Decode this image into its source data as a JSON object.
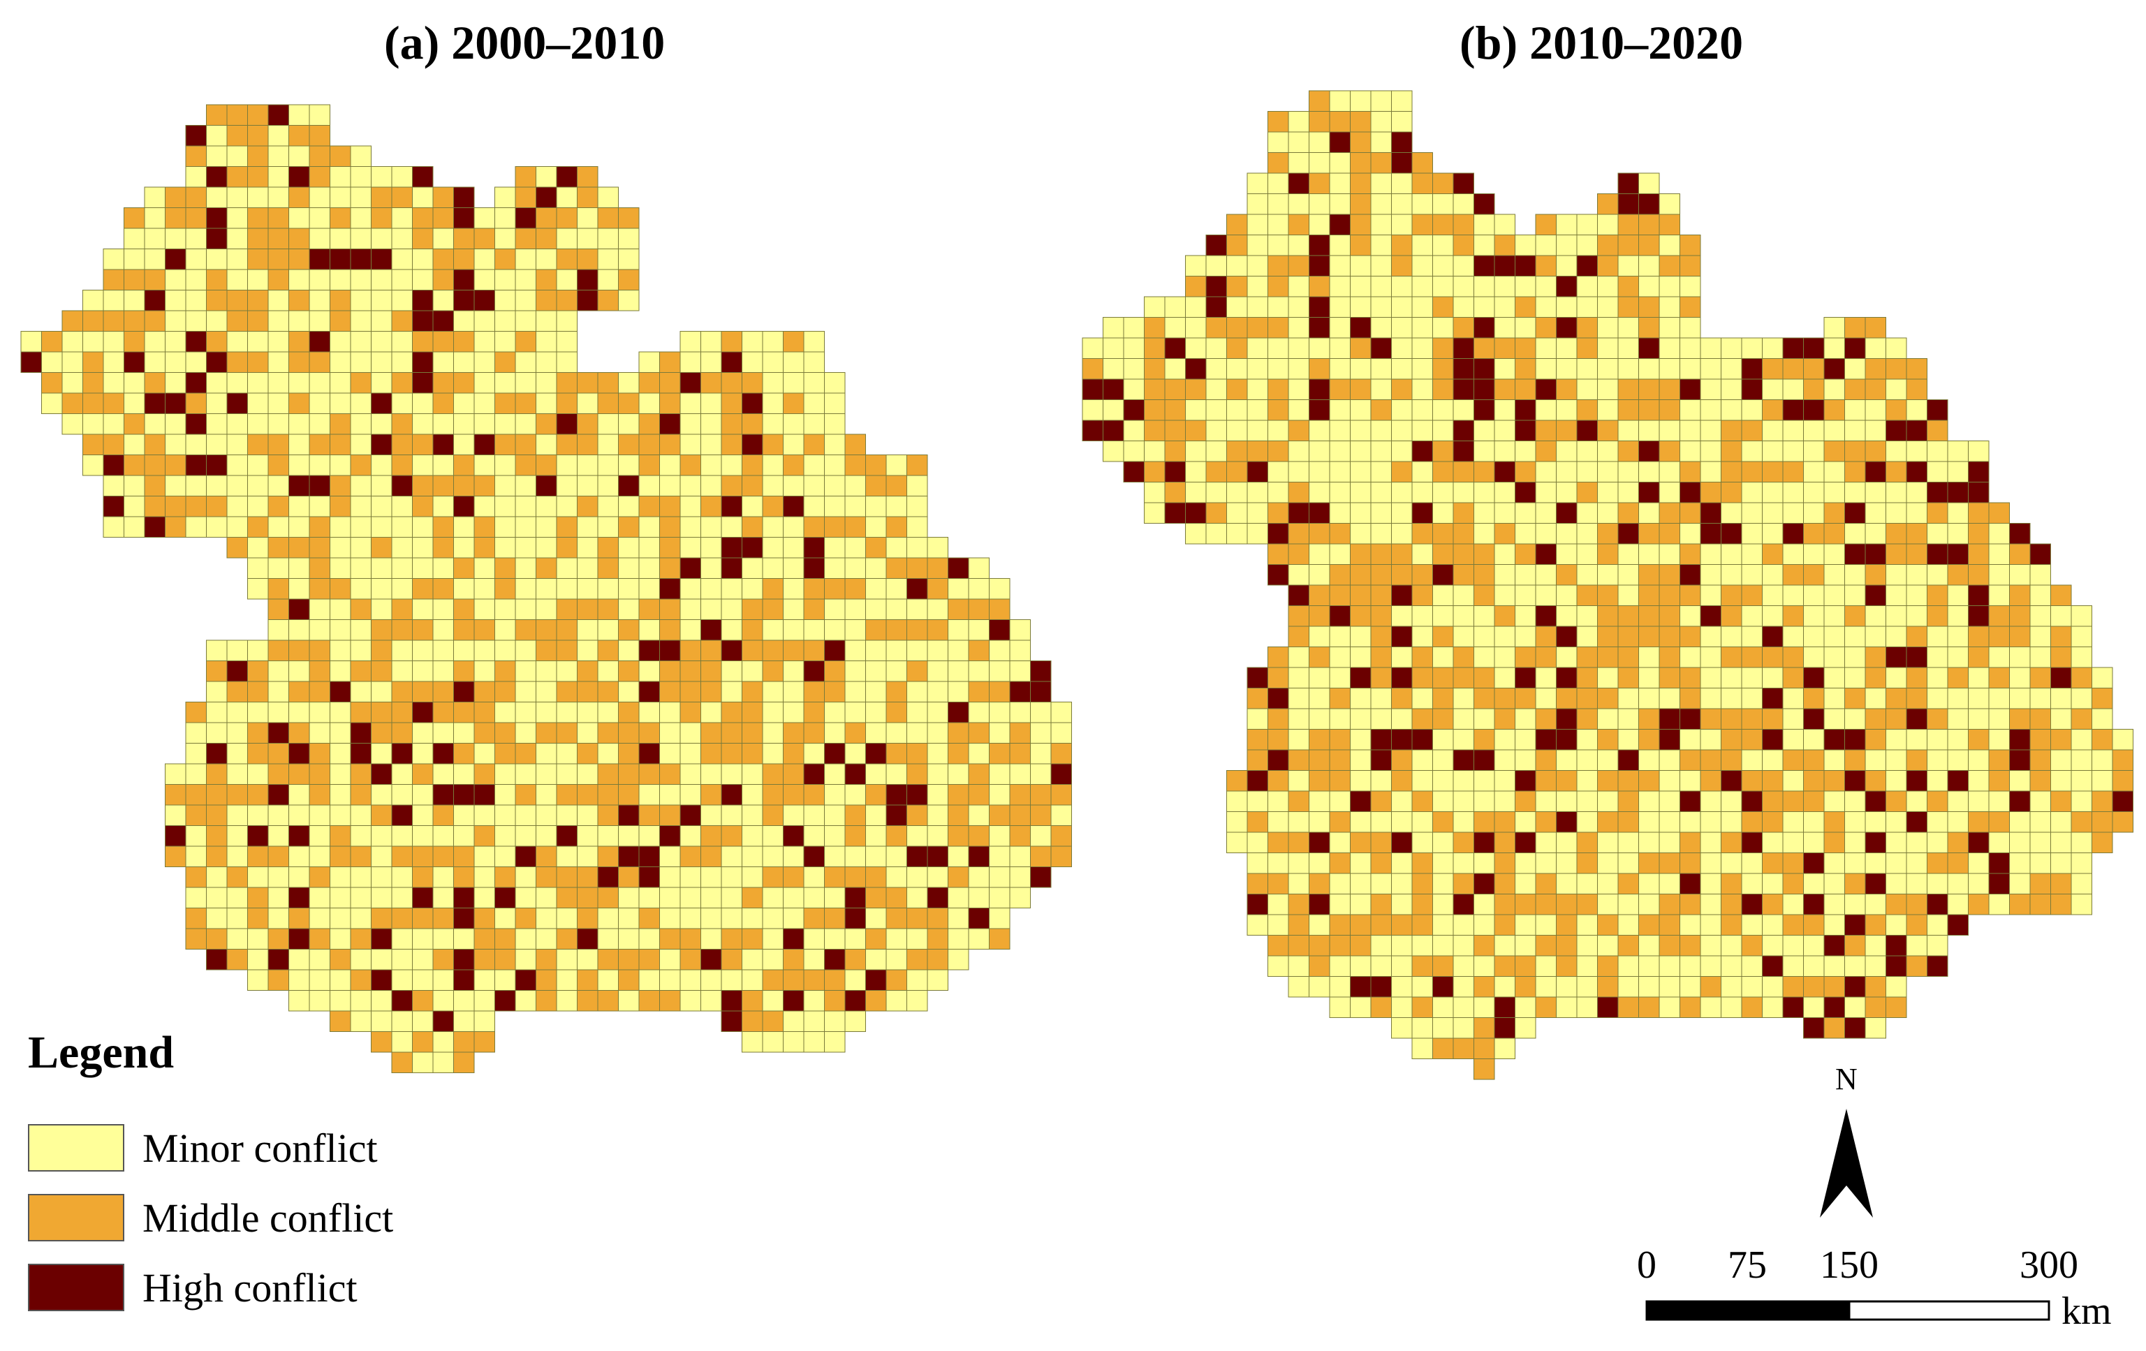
{
  "panels": [
    {
      "title": "(a) 2000–2010",
      "seed": 11,
      "high_share": 0.1,
      "middle_share": 0.36
    },
    {
      "title": "(b) 2010–2020",
      "seed": 29,
      "high_share": 0.12,
      "middle_share": 0.34
    }
  ],
  "legend": {
    "title": "Legend",
    "items": [
      {
        "label": "Minor conflict",
        "color": "#ffff99"
      },
      {
        "label": "Middle conflict",
        "color": "#f0a832"
      },
      {
        "label": "High conflict",
        "color": "#6b0000"
      }
    ]
  },
  "colors": {
    "grid_line": "#7a7a3a",
    "minor": "#ffff99",
    "middle": "#f0a832",
    "high": "#6b0000"
  },
  "north_arrow": {
    "label": "N"
  },
  "scale_bar": {
    "ticks": [
      "0",
      "75",
      "150",
      "300"
    ],
    "unit": "km"
  }
}
